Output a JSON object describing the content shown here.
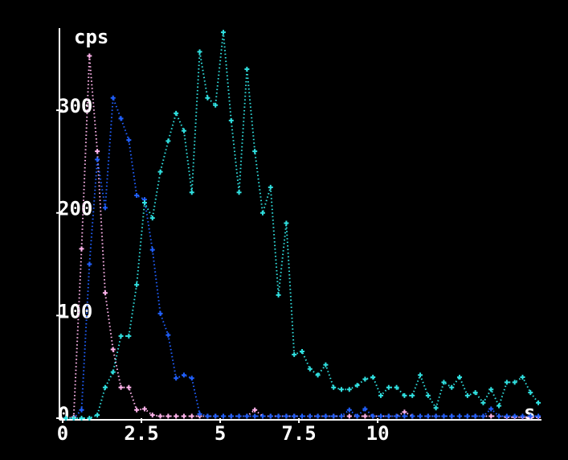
{
  "chart_data": {
    "type": "line",
    "y_label": "cps",
    "x_label": "s",
    "xlim": [
      0,
      15.2
    ],
    "ylim": [
      0,
      380
    ],
    "xticks": [
      0,
      2.5,
      5,
      7.5,
      10
    ],
    "yticks": [
      0,
      100,
      200,
      300
    ],
    "x": [
      0.1,
      0.35,
      0.6,
      0.85,
      1.1,
      1.35,
      1.6,
      1.85,
      2.1,
      2.35,
      2.6,
      2.85,
      3.1,
      3.35,
      3.6,
      3.85,
      4.1,
      4.35,
      4.6,
      4.85,
      5.1,
      5.35,
      5.6,
      5.85,
      6.1,
      6.35,
      6.6,
      6.85,
      7.1,
      7.35,
      7.6,
      7.85,
      8.1,
      8.35,
      8.6,
      8.85,
      9.1,
      9.35,
      9.6,
      9.85,
      10.1,
      10.35,
      10.6,
      10.85,
      11.1,
      11.35,
      11.6,
      11.85,
      12.1,
      12.35,
      12.6,
      12.85,
      13.1,
      13.35,
      13.6,
      13.85,
      14.1,
      14.35,
      14.6,
      14.85,
      15.1
    ],
    "series": [
      {
        "color": "#ffb4ec",
        "values": [
          0,
          1,
          165,
          353,
          260,
          122,
          67,
          30,
          30,
          8,
          9,
          3,
          2,
          2,
          2,
          2,
          2,
          2,
          2,
          2,
          2,
          2,
          2,
          2,
          8,
          2,
          2,
          2,
          2,
          2,
          2,
          2,
          2,
          2,
          2,
          2,
          2,
          2,
          2,
          2,
          2,
          2,
          2,
          6,
          2,
          2,
          2,
          2,
          2,
          2,
          2,
          2,
          2,
          2,
          2,
          2,
          1,
          1,
          1,
          1,
          1
        ]
      },
      {
        "color": "#2060ff",
        "values": [
          0,
          0,
          8,
          150,
          252,
          205,
          312,
          292,
          271,
          217,
          213,
          164,
          102,
          81,
          39,
          42,
          39,
          4,
          2,
          2,
          2,
          2,
          2,
          2,
          2,
          2,
          2,
          2,
          2,
          2,
          2,
          2,
          2,
          2,
          2,
          2,
          8,
          2,
          9,
          2,
          2,
          2,
          2,
          2,
          2,
          2,
          2,
          2,
          2,
          2,
          2,
          2,
          2,
          2,
          9,
          2,
          2,
          2,
          2,
          2,
          2
        ]
      },
      {
        "color": "#30e0e0",
        "values": [
          0,
          0,
          0,
          0,
          3,
          30,
          45,
          80,
          80,
          130,
          210,
          195,
          240,
          270,
          297,
          280,
          220,
          357,
          312,
          305,
          376,
          290,
          220,
          340,
          260,
          200,
          225,
          120,
          190,
          62,
          65,
          48,
          42,
          52,
          30,
          28,
          28,
          32,
          38,
          40,
          22,
          30,
          30,
          22,
          22,
          42,
          22,
          10,
          35,
          30,
          40,
          22,
          25,
          15,
          28,
          12,
          35,
          35,
          40,
          25,
          15
        ]
      }
    ]
  }
}
